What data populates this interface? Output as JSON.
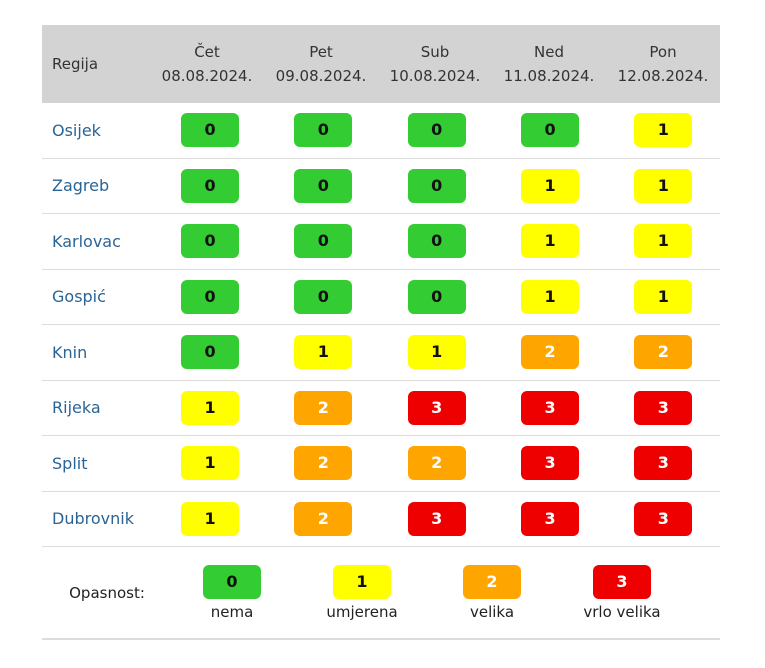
{
  "header": {
    "region": "Regija",
    "days": [
      {
        "day": "Čet",
        "date": "08.08.2024."
      },
      {
        "day": "Pet",
        "date": "09.08.2024."
      },
      {
        "day": "Sub",
        "date": "10.08.2024."
      },
      {
        "day": "Ned",
        "date": "11.08.2024."
      },
      {
        "day": "Pon",
        "date": "12.08.2024."
      }
    ]
  },
  "rows": [
    {
      "region": "Osijek",
      "levels": [
        "0",
        "0",
        "0",
        "0",
        "1"
      ]
    },
    {
      "region": "Zagreb",
      "levels": [
        "0",
        "0",
        "0",
        "1",
        "1"
      ]
    },
    {
      "region": "Karlovac",
      "levels": [
        "0",
        "0",
        "0",
        "1",
        "1"
      ]
    },
    {
      "region": "Gospić",
      "levels": [
        "0",
        "0",
        "0",
        "1",
        "1"
      ]
    },
    {
      "region": "Knin",
      "levels": [
        "0",
        "1",
        "1",
        "2",
        "2"
      ]
    },
    {
      "region": "Rijeka",
      "levels": [
        "1",
        "2",
        "3",
        "3",
        "3"
      ]
    },
    {
      "region": "Split",
      "levels": [
        "1",
        "2",
        "2",
        "3",
        "3"
      ]
    },
    {
      "region": "Dubrovnik",
      "levels": [
        "1",
        "2",
        "3",
        "3",
        "3"
      ]
    }
  ],
  "legend": {
    "label": "Opasnost:",
    "items": [
      {
        "level": "0",
        "text": "nema"
      },
      {
        "level": "1",
        "text": "umjerena"
      },
      {
        "level": "2",
        "text": "velika"
      },
      {
        "level": "3",
        "text": "vrlo velika"
      }
    ]
  },
  "colors": {
    "0": "#33cc33",
    "1": "#ffff00",
    "2": "#ffa500",
    "3": "#ee0000"
  }
}
